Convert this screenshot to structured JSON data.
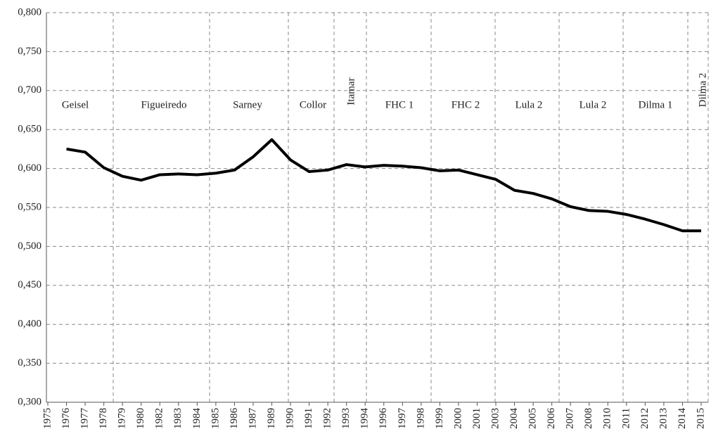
{
  "chart_data": {
    "type": "line",
    "categories": [
      "1975",
      "1976",
      "1977",
      "1978",
      "1979",
      "1980",
      "1982",
      "1983",
      "1984",
      "1985",
      "1986",
      "1987",
      "1989",
      "1990",
      "1991",
      "1992",
      "1993",
      "1994",
      "1996",
      "1997",
      "1998",
      "1999",
      "2000",
      "2001",
      "2003",
      "2004",
      "2005",
      "2006",
      "2007",
      "2008",
      "2010",
      "2011",
      "2012",
      "2013",
      "2014",
      "2015"
    ],
    "values": [
      null,
      0.625,
      0.621,
      0.601,
      0.59,
      0.585,
      0.592,
      0.593,
      0.592,
      0.594,
      0.598,
      0.615,
      0.637,
      0.611,
      0.596,
      0.598,
      0.605,
      0.602,
      0.604,
      0.603,
      0.601,
      0.597,
      0.598,
      0.592,
      0.586,
      0.572,
      0.568,
      0.561,
      0.551,
      0.546,
      0.545,
      0.541,
      0.535,
      0.528,
      0.52,
      0.52
    ],
    "color": "#000000",
    "ylim": [
      0.3,
      0.8
    ],
    "yticks": [
      {
        "value": 0.3,
        "label": "0,300"
      },
      {
        "value": 0.35,
        "label": "0,350"
      },
      {
        "value": 0.4,
        "label": "0,400"
      },
      {
        "value": 0.45,
        "label": "0,450"
      },
      {
        "value": 0.5,
        "label": "0,500"
      },
      {
        "value": 0.55,
        "label": "0,550"
      },
      {
        "value": 0.6,
        "label": "0,600"
      },
      {
        "value": 0.65,
        "label": "0,650"
      },
      {
        "value": 0.7,
        "label": "0,700"
      },
      {
        "value": 0.75,
        "label": "0,750"
      },
      {
        "value": 0.8,
        "label": "0,800"
      }
    ],
    "grid": true,
    "annotations": [
      "Geisel",
      "Figueiredo",
      "Sarney",
      "Collor",
      "Itamar",
      "FHC 1",
      "FHC 2",
      "Lula 2",
      "Lula 2",
      "Dilma 1",
      "Dilma 2"
    ]
  }
}
